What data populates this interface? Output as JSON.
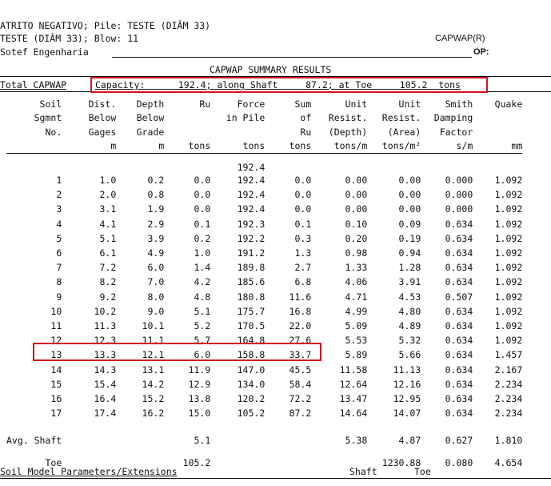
{
  "header": {
    "line1": "ATRITO NEGATIVO; Pile: TESTE (DIÂM 33)",
    "line2": "TESTE (DIÂM 33); Blow: 11",
    "line3": "Sotef Engenharia",
    "program": "CAPWAP(R)",
    "op_label": "OP:"
  },
  "title": "CAPWAP SUMMARY RESULTS",
  "capacity": {
    "label": "Total CAPWAP",
    "text": "Capacity:      192.4; along Shaft     87.2; at Toe     105.2  tons"
  },
  "columns": [
    [
      "Soil",
      "Sgmnt",
      "No.",
      ""
    ],
    [
      "Dist.",
      "Below",
      "Gages",
      "m"
    ],
    [
      "Depth",
      "Below",
      "Grade",
      "m"
    ],
    [
      "Ru",
      "",
      "",
      "tons"
    ],
    [
      "Force",
      "in Pile",
      "",
      "tons"
    ],
    [
      "Sum",
      "of",
      "Ru",
      "tons"
    ],
    [
      "Unit",
      "Resist.",
      "(Depth)",
      "tons/m"
    ],
    [
      "Unit",
      "Resist.",
      "(Area)",
      "tons/m²"
    ],
    [
      "Smith",
      "Damping",
      "Factor",
      "s/m"
    ],
    [
      "Quake",
      "",
      "",
      "mm"
    ]
  ],
  "top_force": "192.4",
  "rows": [
    [
      "1",
      "1.0",
      "0.2",
      "0.0",
      "192.4",
      "0.0",
      "0.00",
      "0.00",
      "0.000",
      "1.092"
    ],
    [
      "2",
      "2.0",
      "0.8",
      "0.0",
      "192.4",
      "0.0",
      "0.00",
      "0.00",
      "0.000",
      "1.092"
    ],
    [
      "3",
      "3.1",
      "1.9",
      "0.0",
      "192.4",
      "0.0",
      "0.00",
      "0.00",
      "0.000",
      "1.092"
    ],
    [
      "4",
      "4.1",
      "2.9",
      "0.1",
      "192.3",
      "0.1",
      "0.10",
      "0.09",
      "0.634",
      "1.092"
    ],
    [
      "5",
      "5.1",
      "3.9",
      "0.2",
      "192.2",
      "0.3",
      "0.20",
      "0.19",
      "0.634",
      "1.092"
    ],
    [
      "6",
      "6.1",
      "4.9",
      "1.0",
      "191.2",
      "1.3",
      "0.98",
      "0.94",
      "0.634",
      "1.092"
    ],
    [
      "7",
      "7.2",
      "6.0",
      "1.4",
      "189.8",
      "2.7",
      "1.33",
      "1.28",
      "0.634",
      "1.092"
    ],
    [
      "8",
      "8.2",
      "7.0",
      "4.2",
      "185.6",
      "6.8",
      "4.06",
      "3.91",
      "0.634",
      "1.092"
    ],
    [
      "9",
      "9.2",
      "8.0",
      "4.8",
      "180.8",
      "11.6",
      "4.71",
      "4.53",
      "0.507",
      "1.092"
    ],
    [
      "10",
      "10.2",
      "9.0",
      "5.1",
      "175.7",
      "16.8",
      "4.99",
      "4.80",
      "0.634",
      "1.092"
    ],
    [
      "11",
      "11.3",
      "10.1",
      "5.2",
      "170.5",
      "22.0",
      "5.09",
      "4.89",
      "0.634",
      "1.092"
    ],
    [
      "12",
      "12.3",
      "11.1",
      "5.7",
      "164.8",
      "27.6",
      "5.53",
      "5.32",
      "0.634",
      "1.092"
    ],
    [
      "13",
      "13.3",
      "12.1",
      "6.0",
      "158.8",
      "33.7",
      "5.89",
      "5.66",
      "0.634",
      "1.457"
    ],
    [
      "14",
      "14.3",
      "13.1",
      "11.9",
      "147.0",
      "45.5",
      "11.58",
      "11.13",
      "0.634",
      "2.167"
    ],
    [
      "15",
      "15.4",
      "14.2",
      "12.9",
      "134.0",
      "58.4",
      "12.64",
      "12.16",
      "0.634",
      "2.234"
    ],
    [
      "16",
      "16.4",
      "15.2",
      "13.8",
      "120.2",
      "72.2",
      "13.47",
      "12.95",
      "0.634",
      "2.234"
    ],
    [
      "17",
      "17.4",
      "16.2",
      "15.0",
      "105.2",
      "87.2",
      "14.64",
      "14.07",
      "0.634",
      "2.234"
    ]
  ],
  "avg_shaft": {
    "label": "Avg. Shaft",
    "ru": "5.1",
    "unit_depth": "5.38",
    "unit_area": "4.87",
    "damping": "0.627",
    "quake": "1.810"
  },
  "toe": {
    "label": "Toe",
    "ru": "105.2",
    "unit_area": "1230.88",
    "damping": "0.080",
    "quake": "4.654"
  },
  "footer": {
    "label": "Soil Model Parameters/Extensions",
    "shaft": "Shaft",
    "toe": "Toe"
  },
  "highlight_color": "#d7121b"
}
